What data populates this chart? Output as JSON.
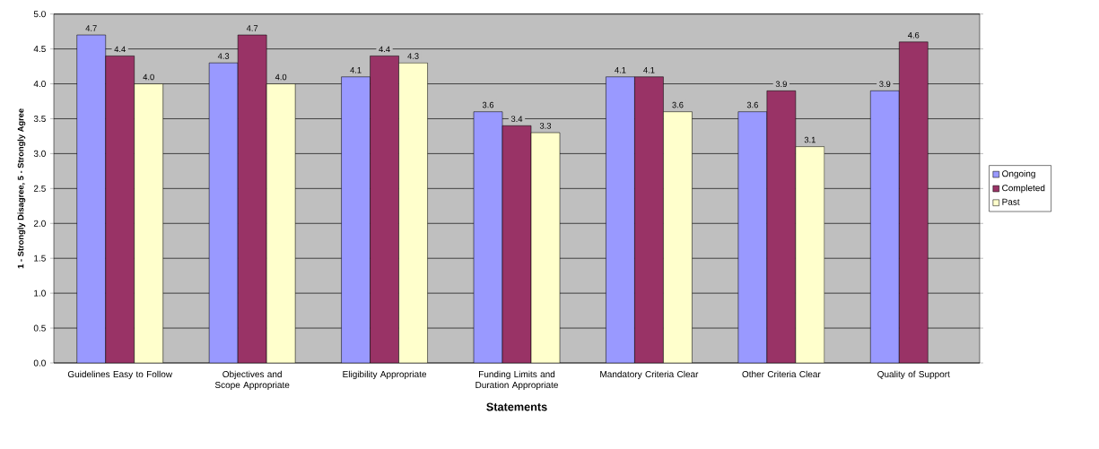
{
  "chart_data": {
    "type": "bar",
    "xlabel": "Statements",
    "ylabel": "1 - Strongly Disagree, 5 - Strongly Agree",
    "categories": [
      "Guidelines Easy to Follow",
      "Objectives and Scope Appropriate",
      "Eligibility Appropriate",
      "Funding Limits and Duration Appropriate",
      "Mandatory Criteria Clear",
      "Other Criteria Clear",
      "Quality of Support"
    ],
    "series": [
      {
        "name": "Ongoing",
        "color": "#9999ff",
        "values": [
          4.7,
          4.3,
          4.1,
          3.6,
          4.1,
          3.6,
          3.9
        ],
        "value_labels": [
          "4.7",
          "4.3",
          "4.1",
          "3.6",
          "4.1",
          "3.6",
          "3.9"
        ]
      },
      {
        "name": "Completed",
        "color": "#993366",
        "values": [
          4.4,
          4.7,
          4.4,
          3.4,
          4.1,
          3.9,
          4.6
        ],
        "value_labels": [
          "4.4",
          "4.7",
          "4.4",
          "3.4",
          "4.1",
          "3.9",
          "4.6"
        ]
      },
      {
        "name": "Past",
        "color": "#ffffcc",
        "values": [
          4.0,
          4.0,
          4.3,
          3.3,
          3.6,
          3.1,
          null
        ],
        "value_labels": [
          "4.0",
          "4.0",
          "4.3",
          "3.3",
          "3.6",
          "3.1",
          null
        ]
      }
    ],
    "ylim": [
      0,
      5
    ],
    "yticks": [
      {
        "value": 0,
        "label": "0.0"
      },
      {
        "value": 0.5,
        "label": "0.5"
      },
      {
        "value": 1,
        "label": "1.0"
      },
      {
        "value": 1.5,
        "label": "1.5"
      },
      {
        "value": 2,
        "label": "2.0"
      },
      {
        "value": 2.5,
        "label": "2.5"
      },
      {
        "value": 3,
        "label": "3.0"
      },
      {
        "value": 3.5,
        "label": "3.5"
      },
      {
        "value": 4,
        "label": "4.0"
      },
      {
        "value": 4.5,
        "label": "4.5"
      },
      {
        "value": 5,
        "label": "5.0"
      }
    ],
    "grid": "y",
    "legend": "right"
  }
}
